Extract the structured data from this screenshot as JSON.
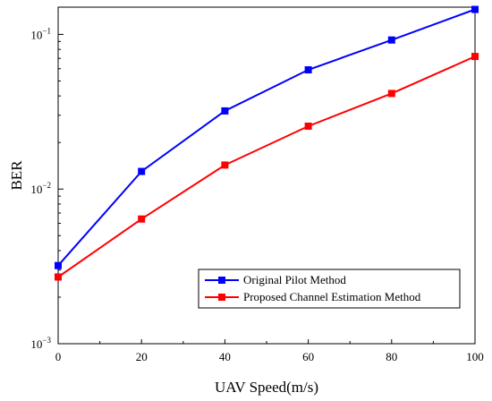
{
  "chart_data": {
    "type": "line",
    "title": "",
    "xlabel": "UAV Speed(m/s)",
    "ylabel": "BER",
    "x": [
      0,
      20,
      40,
      60,
      80,
      100
    ],
    "xlim": [
      0,
      100
    ],
    "xticks": [
      "0",
      "20",
      "40",
      "60",
      "80",
      "100"
    ],
    "ylim": [
      0.001,
      0.15
    ],
    "yscale": "log",
    "yticks": [
      {
        "value": 0.001,
        "base": "10",
        "exp": "−3"
      },
      {
        "value": 0.01,
        "base": "10",
        "exp": "−2"
      },
      {
        "value": 0.1,
        "base": "10",
        "exp": "−1"
      }
    ],
    "grid": false,
    "legend": "lower-right",
    "series": [
      {
        "name": "Original Pilot Method",
        "color": "#0000ff",
        "marker": "square",
        "values": [
          0.0032,
          0.013,
          0.032,
          0.059,
          0.092,
          0.145
        ]
      },
      {
        "name": "Proposed Channel Estimation Method",
        "color": "#ff0000",
        "marker": "square",
        "values": [
          0.0027,
          0.0064,
          0.0143,
          0.0255,
          0.0415,
          0.072
        ]
      }
    ]
  }
}
